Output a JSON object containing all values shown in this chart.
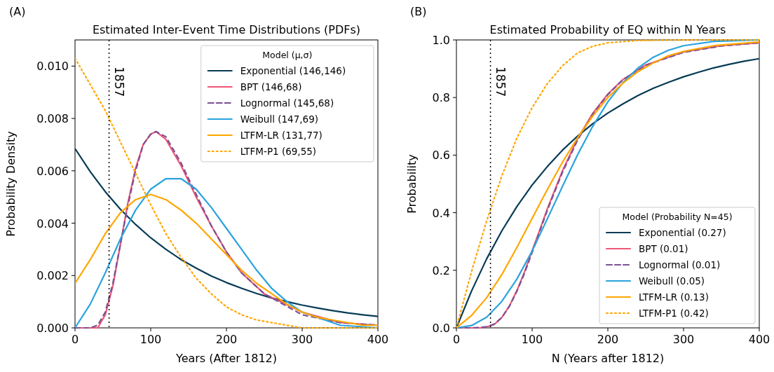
{
  "chart_data": [
    {
      "type": "line",
      "title": "Estimated Inter-Event Time Distributions (PDFs)",
      "xlabel": "Years (After 1812)",
      "ylabel": "Probability Density",
      "legend_title": "Model (μ,σ)",
      "legend": "top right",
      "annotations": [
        "(A)",
        "1857"
      ],
      "xlim": [
        0,
        400
      ],
      "ylim": [
        0,
        0.011
      ],
      "xticks": [
        0,
        100,
        200,
        300,
        400
      ],
      "yticks": [
        {
          "value": 0,
          "label": "0.000"
        },
        {
          "value": 0.002,
          "label": "0.002"
        },
        {
          "value": 0.004,
          "label": "0.004"
        },
        {
          "value": 0.006,
          "label": "0.006"
        },
        {
          "value": 0.008,
          "label": "0.008"
        },
        {
          "value": 0.01,
          "label": "0.010"
        }
      ],
      "ref_lines": [
        {
          "axis": "x",
          "value": 45,
          "color": "#000000",
          "line_style": "dotted"
        }
      ],
      "series": [
        {
          "name": "Exponential (146,146)",
          "color": "#073b56",
          "line_style": "solid",
          "x": [
            0,
            20,
            40,
            60,
            80,
            100,
            120,
            140,
            160,
            180,
            200,
            220,
            240,
            260,
            280,
            300,
            320,
            340,
            360,
            380,
            400
          ],
          "values": [
            0.00685,
            0.00597,
            0.0052,
            0.00453,
            0.00395,
            0.00344,
            0.003,
            0.00261,
            0.00228,
            0.00198,
            0.00173,
            0.00151,
            0.00131,
            0.00114,
            0.001,
            0.00087,
            0.00076,
            0.00066,
            0.00057,
            0.0005,
            0.00044
          ]
        },
        {
          "name": "BPT (146,68)",
          "color": "#ef5675",
          "line_style": "solid",
          "x": [
            0,
            20,
            30,
            40,
            50,
            60,
            70,
            80,
            90,
            100,
            107,
            120,
            140,
            160,
            180,
            200,
            220,
            250,
            300,
            350,
            400
          ],
          "values": [
            0,
            0,
            0,
            0.0005,
            0.0016,
            0.0032,
            0.0048,
            0.0061,
            0.007,
            0.0074,
            0.0075,
            0.0072,
            0.0062,
            0.005,
            0.0039,
            0.0029,
            0.0021,
            0.0013,
            0.0006,
            0.0002,
            0.0001
          ]
        },
        {
          "name": "Lognormal (145,68)",
          "color": "#7a5195",
          "line_style": "dashed",
          "x": [
            0,
            20,
            30,
            40,
            50,
            60,
            70,
            80,
            90,
            100,
            107,
            120,
            140,
            160,
            180,
            200,
            220,
            250,
            300,
            350,
            400
          ],
          "values": [
            0,
            0,
            0.0001,
            0.0006,
            0.0017,
            0.0032,
            0.0047,
            0.006,
            0.007,
            0.0074,
            0.0075,
            0.0073,
            0.0063,
            0.0051,
            0.0039,
            0.0029,
            0.0021,
            0.0013,
            0.0005,
            0.0002,
            0.0001
          ]
        },
        {
          "name": "Weibull (147,69)",
          "color": "#2aa3dd",
          "line_style": "solid",
          "x": [
            0,
            20,
            40,
            60,
            80,
            100,
            120,
            140,
            160,
            180,
            200,
            220,
            240,
            260,
            280,
            300,
            320,
            350,
            400
          ],
          "values": [
            0,
            0.0009,
            0.0021,
            0.0034,
            0.0045,
            0.0053,
            0.0057,
            0.0057,
            0.0053,
            0.0046,
            0.0038,
            0.003,
            0.0022,
            0.0015,
            0.001,
            0.0006,
            0.0004,
            0.0001,
            0
          ]
        },
        {
          "name": "LTFM-LR (131,77)",
          "color": "#ffa600",
          "line_style": "solid",
          "x": [
            0,
            20,
            40,
            60,
            80,
            100,
            120,
            140,
            160,
            180,
            200,
            220,
            240,
            260,
            280,
            300,
            320,
            340,
            360,
            380,
            400
          ],
          "values": [
            0.0017,
            0.0026,
            0.0036,
            0.0044,
            0.0049,
            0.0051,
            0.0049,
            0.0045,
            0.004,
            0.0034,
            0.0028,
            0.0022,
            0.0017,
            0.0013,
            0.0009,
            0.0006,
            0.0004,
            0.0003,
            0.0002,
            0.0001,
            0.0001
          ]
        },
        {
          "name": "LTFM-P1 (69,55)",
          "color": "#ffa600",
          "line_style": "dotted",
          "x": [
            0,
            20,
            40,
            60,
            80,
            100,
            120,
            140,
            160,
            180,
            200,
            220,
            240,
            260,
            280,
            300,
            320,
            340,
            360,
            380,
            400
          ],
          "values": [
            0.0103,
            0.0093,
            0.0083,
            0.0071,
            0.0059,
            0.0047,
            0.0036,
            0.0027,
            0.0019,
            0.0013,
            0.0008,
            0.0005,
            0.0003,
            0.0002,
            0.0001,
            0,
            0,
            0,
            0,
            0,
            0
          ]
        }
      ]
    },
    {
      "type": "line",
      "title": "Estimated Probability of EQ within N Years",
      "xlabel": "N (Years after 1812)",
      "ylabel": "Probability",
      "legend_title": "Model (Probability N=45)",
      "legend": "bottom right",
      "annotations": [
        "(B)",
        "1857"
      ],
      "xlim": [
        0,
        400
      ],
      "ylim": [
        0,
        1
      ],
      "xticks": [
        0,
        100,
        200,
        300,
        400
      ],
      "yticks": [
        {
          "value": 0,
          "label": "0.0"
        },
        {
          "value": 0.2,
          "label": "0.2"
        },
        {
          "value": 0.4,
          "label": "0.4"
        },
        {
          "value": 0.6,
          "label": "0.6"
        },
        {
          "value": 0.8,
          "label": "0.8"
        },
        {
          "value": 1,
          "label": "1.0"
        }
      ],
      "ref_lines": [
        {
          "axis": "x",
          "value": 45,
          "color": "#000000",
          "line_style": "dotted"
        }
      ],
      "series": [
        {
          "name": "Exponential (0.27)",
          "color": "#073b56",
          "line_style": "solid",
          "x": [
            0,
            20,
            40,
            60,
            80,
            100,
            120,
            140,
            160,
            180,
            200,
            220,
            240,
            260,
            280,
            300,
            320,
            340,
            360,
            380,
            400
          ],
          "values": [
            0,
            0.128,
            0.24,
            0.337,
            0.422,
            0.496,
            0.56,
            0.617,
            0.666,
            0.709,
            0.746,
            0.778,
            0.807,
            0.832,
            0.853,
            0.872,
            0.888,
            0.903,
            0.915,
            0.926,
            0.935
          ]
        },
        {
          "name": "BPT (0.01)",
          "color": "#ef5675",
          "line_style": "solid",
          "x": [
            0,
            20,
            30,
            40,
            50,
            60,
            70,
            80,
            90,
            100,
            110,
            120,
            140,
            160,
            180,
            200,
            220,
            250,
            300,
            350,
            400
          ],
          "values": [
            0,
            0,
            0,
            0.003,
            0.012,
            0.036,
            0.076,
            0.13,
            0.195,
            0.268,
            0.34,
            0.413,
            0.545,
            0.657,
            0.745,
            0.812,
            0.863,
            0.913,
            0.958,
            0.98,
            0.99
          ]
        },
        {
          "name": "Lognormal (0.01)",
          "color": "#7a5195",
          "line_style": "dashed",
          "x": [
            0,
            20,
            30,
            40,
            50,
            60,
            70,
            80,
            90,
            100,
            110,
            120,
            140,
            160,
            180,
            200,
            220,
            250,
            300,
            350,
            400
          ],
          "values": [
            0,
            0,
            0.001,
            0.004,
            0.013,
            0.036,
            0.075,
            0.128,
            0.19,
            0.262,
            0.335,
            0.408,
            0.54,
            0.652,
            0.742,
            0.81,
            0.862,
            0.912,
            0.957,
            0.979,
            0.99
          ]
        },
        {
          "name": "Weibull (0.05)",
          "color": "#2aa3dd",
          "line_style": "solid",
          "x": [
            0,
            20,
            40,
            60,
            80,
            100,
            120,
            140,
            160,
            180,
            200,
            220,
            240,
            260,
            280,
            300,
            340,
            400
          ],
          "values": [
            0,
            0.008,
            0.037,
            0.092,
            0.17,
            0.267,
            0.378,
            0.491,
            0.601,
            0.7,
            0.785,
            0.852,
            0.903,
            0.94,
            0.964,
            0.98,
            0.995,
            1
          ]
        },
        {
          "name": "LTFM-LR (0.13)",
          "color": "#ffa600",
          "line_style": "solid",
          "x": [
            0,
            20,
            40,
            60,
            80,
            100,
            120,
            140,
            160,
            180,
            200,
            220,
            240,
            260,
            280,
            300,
            340,
            400
          ],
          "values": [
            0,
            0.043,
            0.105,
            0.185,
            0.28,
            0.38,
            0.48,
            0.575,
            0.66,
            0.735,
            0.8,
            0.85,
            0.89,
            0.92,
            0.945,
            0.96,
            0.98,
            0.993
          ]
        },
        {
          "name": "LTFM-P1 (0.42)",
          "color": "#ffa600",
          "line_style": "dotted",
          "x": [
            0,
            20,
            40,
            60,
            80,
            100,
            120,
            140,
            160,
            180,
            200,
            240,
            300,
            400
          ],
          "values": [
            0,
            0.196,
            0.372,
            0.528,
            0.66,
            0.765,
            0.848,
            0.91,
            0.955,
            0.978,
            0.99,
            0.998,
            1,
            1
          ]
        }
      ]
    }
  ]
}
